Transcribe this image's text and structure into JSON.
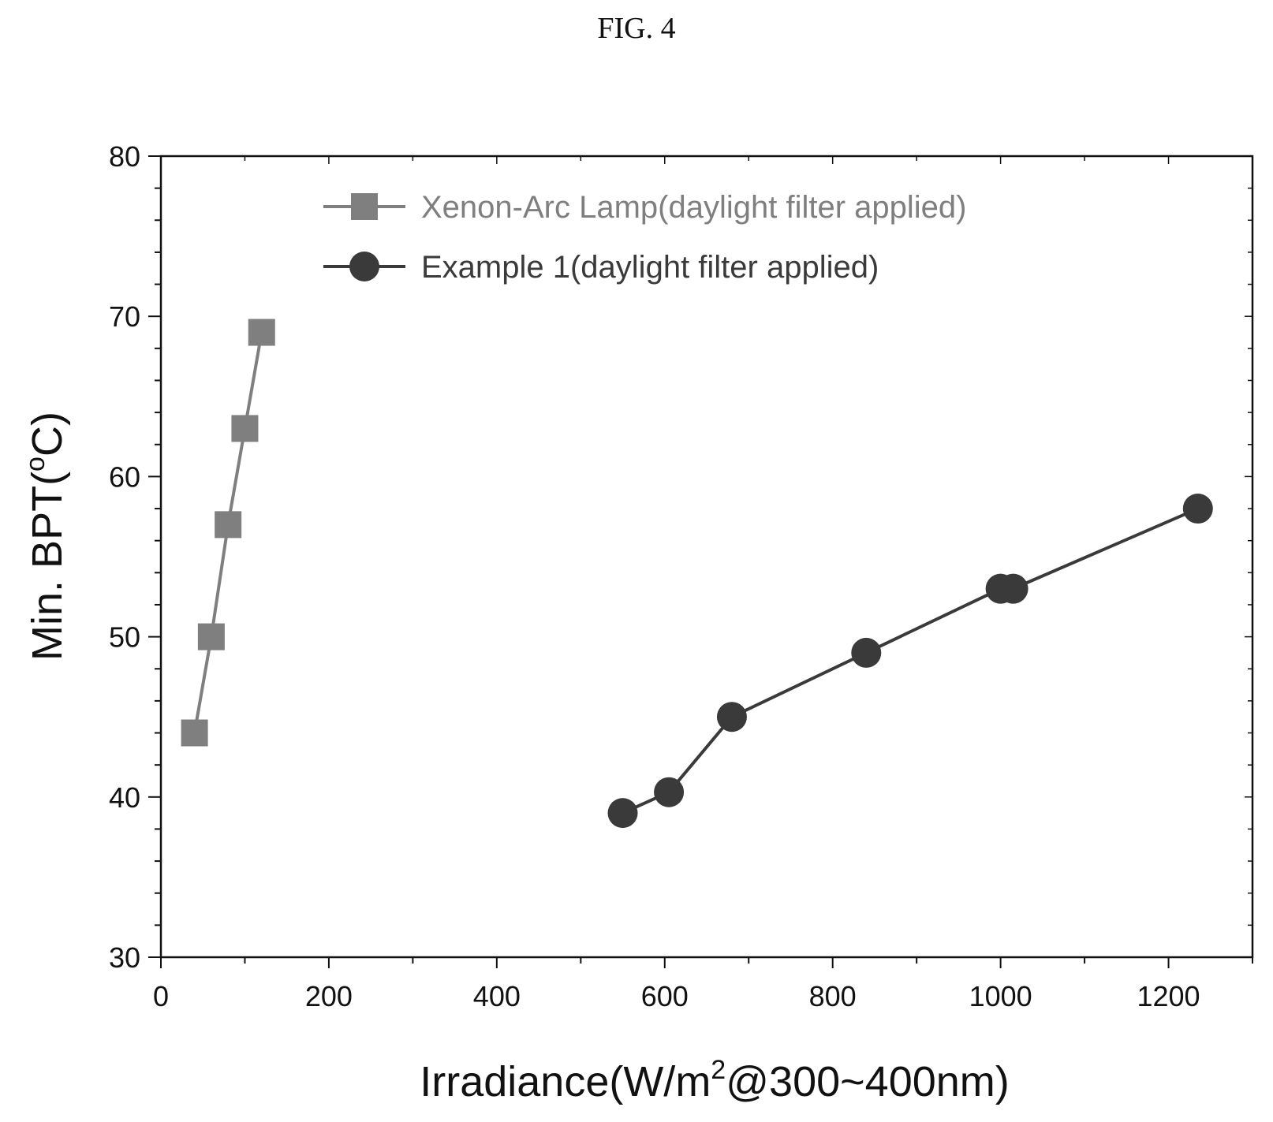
{
  "figure_label": "FIG. 4",
  "colors": {
    "xenon": "#7f7f7f",
    "example": "#3a3a3a",
    "axis": "#111111"
  },
  "chart_data": {
    "type": "line",
    "title": "",
    "xlabel_main": "Irradiance(W/m",
    "xlabel_sup": "2",
    "xlabel_tail": "@300~400nm)",
    "ylabel_main": "Min. BPT(",
    "ylabel_sup": "o",
    "ylabel_tail": "C)",
    "xlim": [
      0,
      1300
    ],
    "ylim": [
      30,
      80
    ],
    "xticks": [
      0,
      200,
      400,
      600,
      800,
      1000,
      1200
    ],
    "yticks": [
      30,
      40,
      50,
      60,
      70,
      80
    ],
    "legend_position": "top-right",
    "series": [
      {
        "name": "Xenon-Arc Lamp(daylight filter applied)",
        "marker": "square",
        "color": "#7f7f7f",
        "x": [
          40,
          60,
          80,
          100,
          120
        ],
        "y": [
          44,
          50,
          57,
          63,
          69
        ]
      },
      {
        "name": "Example 1(daylight filter applied)",
        "marker": "circle",
        "color": "#3a3a3a",
        "x": [
          550,
          605,
          680,
          840,
          1000,
          1015,
          1235
        ],
        "y": [
          39,
          40.3,
          45,
          49,
          53,
          53,
          58
        ]
      }
    ]
  }
}
